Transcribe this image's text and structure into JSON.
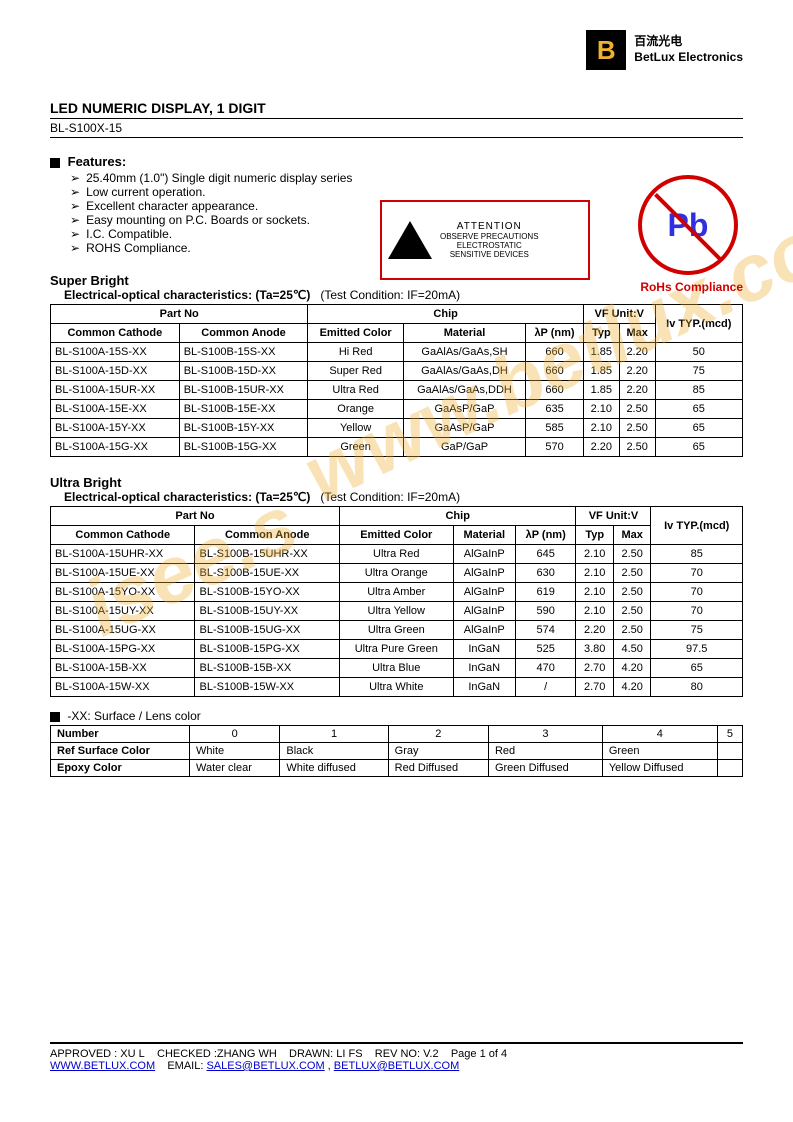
{
  "brand": {
    "logo_letter": "B",
    "cn": "百流光电",
    "en": "BetLux Electronics"
  },
  "title": "LED NUMERIC DISPLAY, 1 DIGIT",
  "part_code": "BL-S100X-15",
  "features_heading": "Features:",
  "features": [
    "25.40mm (1.0\") Single digit numeric display series",
    "Low current operation.",
    "Excellent character appearance.",
    "Easy mounting on P.C. Boards or sockets.",
    "I.C. Compatible.",
    "ROHS Compliance."
  ],
  "attention": {
    "title": "ATTENTION",
    "line1": "OBSERVE PRECAUTIONS",
    "line2": "ELECTROSTATIC",
    "line3": "SENSITIVE DEVICES"
  },
  "rohs": {
    "symbol": "Pb",
    "label": "RoHs Compliance"
  },
  "sb": {
    "title": "Super Bright",
    "char": "Electrical-optical characteristics: (Ta=25℃)",
    "cond": "(Test Condition: IF=20mA)",
    "headers": {
      "partno": "Part No",
      "chip": "Chip",
      "vf": "VF Unit:V",
      "iv": "Iv TYP.(mcd)",
      "cc": "Common Cathode",
      "ca": "Common Anode",
      "color": "Emitted Color",
      "mat": "Material",
      "wl": "λP (nm)",
      "typ": "Typ",
      "max": "Max"
    },
    "rows": [
      {
        "cc": "BL-S100A-15S-XX",
        "ca": "BL-S100B-15S-XX",
        "color": "Hi Red",
        "mat": "GaAlAs/GaAs,SH",
        "wl": "660",
        "typ": "1.85",
        "max": "2.20",
        "iv": "50"
      },
      {
        "cc": "BL-S100A-15D-XX",
        "ca": "BL-S100B-15D-XX",
        "color": "Super Red",
        "mat": "GaAlAs/GaAs,DH",
        "wl": "660",
        "typ": "1.85",
        "max": "2.20",
        "iv": "75"
      },
      {
        "cc": "BL-S100A-15UR-XX",
        "ca": "BL-S100B-15UR-XX",
        "color": "Ultra Red",
        "mat": "GaAlAs/GaAs,DDH",
        "wl": "660",
        "typ": "1.85",
        "max": "2.20",
        "iv": "85"
      },
      {
        "cc": "BL-S100A-15E-XX",
        "ca": "BL-S100B-15E-XX",
        "color": "Orange",
        "mat": "GaAsP/GaP",
        "wl": "635",
        "typ": "2.10",
        "max": "2.50",
        "iv": "65"
      },
      {
        "cc": "BL-S100A-15Y-XX",
        "ca": "BL-S100B-15Y-XX",
        "color": "Yellow",
        "mat": "GaAsP/GaP",
        "wl": "585",
        "typ": "2.10",
        "max": "2.50",
        "iv": "65"
      },
      {
        "cc": "BL-S100A-15G-XX",
        "ca": "BL-S100B-15G-XX",
        "color": "Green",
        "mat": "GaP/GaP",
        "wl": "570",
        "typ": "2.20",
        "max": "2.50",
        "iv": "65"
      }
    ]
  },
  "ub": {
    "title": "Ultra Bright",
    "char": "Electrical-optical characteristics: (Ta=25℃)",
    "cond": "(Test Condition: IF=20mA)",
    "headers": {
      "partno": "Part No",
      "chip": "Chip",
      "vf": "VF Unit:V",
      "iv": "Iv TYP.(mcd)",
      "cc": "Common Cathode",
      "ca": "Common Anode",
      "color": "Emitted Color",
      "mat": "Material",
      "wl": "λP (nm)",
      "typ": "Typ",
      "max": "Max"
    },
    "rows": [
      {
        "cc": "BL-S100A-15UHR-XX",
        "ca": "BL-S100B-15UHR-XX",
        "color": "Ultra Red",
        "mat": "AlGaInP",
        "wl": "645",
        "typ": "2.10",
        "max": "2.50",
        "iv": "85"
      },
      {
        "cc": "BL-S100A-15UE-XX",
        "ca": "BL-S100B-15UE-XX",
        "color": "Ultra Orange",
        "mat": "AlGaInP",
        "wl": "630",
        "typ": "2.10",
        "max": "2.50",
        "iv": "70"
      },
      {
        "cc": "BL-S100A-15YO-XX",
        "ca": "BL-S100B-15YO-XX",
        "color": "Ultra Amber",
        "mat": "AlGaInP",
        "wl": "619",
        "typ": "2.10",
        "max": "2.50",
        "iv": "70"
      },
      {
        "cc": "BL-S100A-15UY-XX",
        "ca": "BL-S100B-15UY-XX",
        "color": "Ultra Yellow",
        "mat": "AlGaInP",
        "wl": "590",
        "typ": "2.10",
        "max": "2.50",
        "iv": "70"
      },
      {
        "cc": "BL-S100A-15UG-XX",
        "ca": "BL-S100B-15UG-XX",
        "color": "Ultra Green",
        "mat": "AlGaInP",
        "wl": "574",
        "typ": "2.20",
        "max": "2.50",
        "iv": "75"
      },
      {
        "cc": "BL-S100A-15PG-XX",
        "ca": "BL-S100B-15PG-XX",
        "color": "Ultra Pure Green",
        "mat": "InGaN",
        "wl": "525",
        "typ": "3.80",
        "max": "4.50",
        "iv": "97.5"
      },
      {
        "cc": "BL-S100A-15B-XX",
        "ca": "BL-S100B-15B-XX",
        "color": "Ultra Blue",
        "mat": "InGaN",
        "wl": "470",
        "typ": "2.70",
        "max": "4.20",
        "iv": "65"
      },
      {
        "cc": "BL-S100A-15W-XX",
        "ca": "BL-S100B-15W-XX",
        "color": "Ultra White",
        "mat": "InGaN",
        "wl": "/",
        "typ": "2.70",
        "max": "4.20",
        "iv": "80"
      }
    ]
  },
  "lens": {
    "note": "-XX: Surface / Lens color",
    "rows": {
      "h_num": "Number",
      "h_ref": "Ref Surface Color",
      "h_epx": "Epoxy Color",
      "cols": [
        "0",
        "1",
        "2",
        "3",
        "4",
        "5"
      ],
      "ref": [
        "White",
        "Black",
        "Gray",
        "Red",
        "Green",
        ""
      ],
      "epx": [
        "Water clear",
        "White diffused",
        "Red Diffused",
        "Green Diffused",
        "Yellow Diffused",
        ""
      ]
    }
  },
  "footer": {
    "line1_a": "APPROVED : XU L",
    "line1_b": "CHECKED :ZHANG WH",
    "line1_c": "DRAWN: LI FS",
    "line1_d": "REV NO: V.2",
    "line1_e": "Page 1 of 4",
    "url": "WWW.BETLUX.COM",
    "email_lbl": "EMAIL: ",
    "email1": "SALES@BETLUX.COM",
    "email2": "BETLUX@BETLUX.COM"
  },
  "watermark1": "isee.s",
  "watermark2": "www.betlux.com"
}
